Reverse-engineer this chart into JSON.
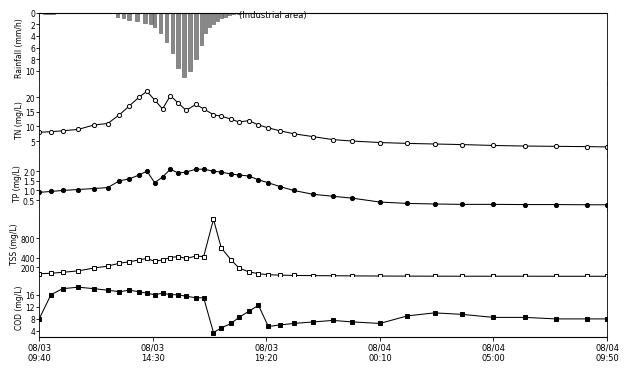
{
  "x_labels": [
    "08/03\n09:40",
    "08/03\n14:30",
    "08/03\n19:20",
    "08/04\n00:10",
    "08/04\n05:00",
    "08/04\n09:50"
  ],
  "x_positions": [
    0,
    290,
    580,
    870,
    1160,
    1450
  ],
  "rain_bar_x": [
    15,
    25,
    35,
    200,
    215,
    230,
    250,
    270,
    285,
    295,
    310,
    325,
    340,
    355,
    370,
    385,
    400,
    415,
    425,
    435,
    445,
    455,
    465,
    475,
    485,
    495,
    510,
    525,
    540,
    555
  ],
  "rain_bar_h": [
    0.25,
    0.25,
    0.2,
    0.8,
    1.0,
    1.2,
    1.5,
    1.8,
    2.0,
    2.5,
    3.5,
    5.0,
    7.0,
    9.5,
    11.0,
    10.0,
    8.0,
    5.5,
    3.5,
    2.5,
    2.0,
    1.5,
    1.0,
    0.7,
    0.4,
    0.3,
    0.2,
    0.15,
    0.1,
    0.05
  ],
  "TN_times": [
    0,
    30,
    60,
    100,
    140,
    175,
    205,
    230,
    255,
    275,
    295,
    315,
    335,
    355,
    375,
    400,
    420,
    445,
    465,
    490,
    510,
    535,
    560,
    585,
    615,
    650,
    700,
    750,
    800,
    870,
    940,
    1010,
    1080,
    1160,
    1240,
    1320,
    1400,
    1450
  ],
  "TN_values": [
    8.0,
    8.2,
    8.5,
    9.0,
    10.5,
    11.0,
    14.0,
    17.0,
    20.0,
    22.0,
    19.0,
    16.0,
    20.5,
    18.0,
    15.5,
    17.5,
    16.0,
    14.0,
    13.5,
    12.5,
    11.5,
    12.0,
    10.5,
    9.5,
    8.5,
    7.5,
    6.5,
    5.5,
    5.0,
    4.5,
    4.2,
    4.0,
    3.8,
    3.5,
    3.3,
    3.2,
    3.1,
    3.0
  ],
  "TP_times": [
    0,
    30,
    60,
    100,
    140,
    175,
    205,
    230,
    255,
    275,
    295,
    315,
    335,
    355,
    375,
    400,
    420,
    445,
    465,
    490,
    510,
    535,
    560,
    585,
    615,
    650,
    700,
    750,
    800,
    870,
    940,
    1010,
    1080,
    1160,
    1240,
    1320,
    1400,
    1450
  ],
  "TP_values": [
    0.9,
    0.95,
    1.0,
    1.05,
    1.1,
    1.15,
    1.5,
    1.6,
    1.8,
    2.0,
    1.4,
    1.7,
    2.1,
    1.9,
    1.95,
    2.1,
    2.1,
    2.0,
    1.95,
    1.85,
    1.8,
    1.75,
    1.55,
    1.4,
    1.2,
    1.0,
    0.8,
    0.7,
    0.6,
    0.4,
    0.33,
    0.3,
    0.28,
    0.28,
    0.27,
    0.27,
    0.26,
    0.26
  ],
  "SSC_times": [
    0,
    30,
    60,
    100,
    140,
    175,
    205,
    230,
    255,
    275,
    295,
    315,
    335,
    355,
    375,
    400,
    420,
    445,
    465,
    490,
    510,
    535,
    560,
    585,
    615,
    650,
    700,
    750,
    800,
    870,
    940,
    1010,
    1080,
    1160,
    1240,
    1320,
    1400,
    1450
  ],
  "SSC_values": [
    60,
    70,
    90,
    120,
    180,
    220,
    280,
    310,
    350,
    380,
    320,
    350,
    400,
    420,
    380,
    430,
    420,
    1200,
    600,
    350,
    180,
    100,
    60,
    40,
    30,
    25,
    20,
    18,
    15,
    12,
    10,
    9,
    8,
    8,
    8,
    7,
    7,
    7
  ],
  "COD_times": [
    0,
    30,
    60,
    100,
    140,
    175,
    205,
    230,
    255,
    275,
    295,
    315,
    335,
    355,
    375,
    400,
    420,
    445,
    465,
    490,
    510,
    535,
    560,
    585,
    615,
    650,
    700,
    750,
    800,
    870,
    940,
    1010,
    1080,
    1160,
    1240,
    1320,
    1400,
    1450
  ],
  "COD_values": [
    8.0,
    16.0,
    18.0,
    18.5,
    18.0,
    17.5,
    17.0,
    17.5,
    17.0,
    16.5,
    16.0,
    16.5,
    16.0,
    16.0,
    15.5,
    15.0,
    15.0,
    3.5,
    5.0,
    6.5,
    8.5,
    10.5,
    12.5,
    5.5,
    6.0,
    6.5,
    7.0,
    7.5,
    7.0,
    6.5,
    9.0,
    10.0,
    9.5,
    8.5,
    8.5,
    8.0,
    8.0,
    8.0
  ],
  "text_label": "(Industrial area)"
}
